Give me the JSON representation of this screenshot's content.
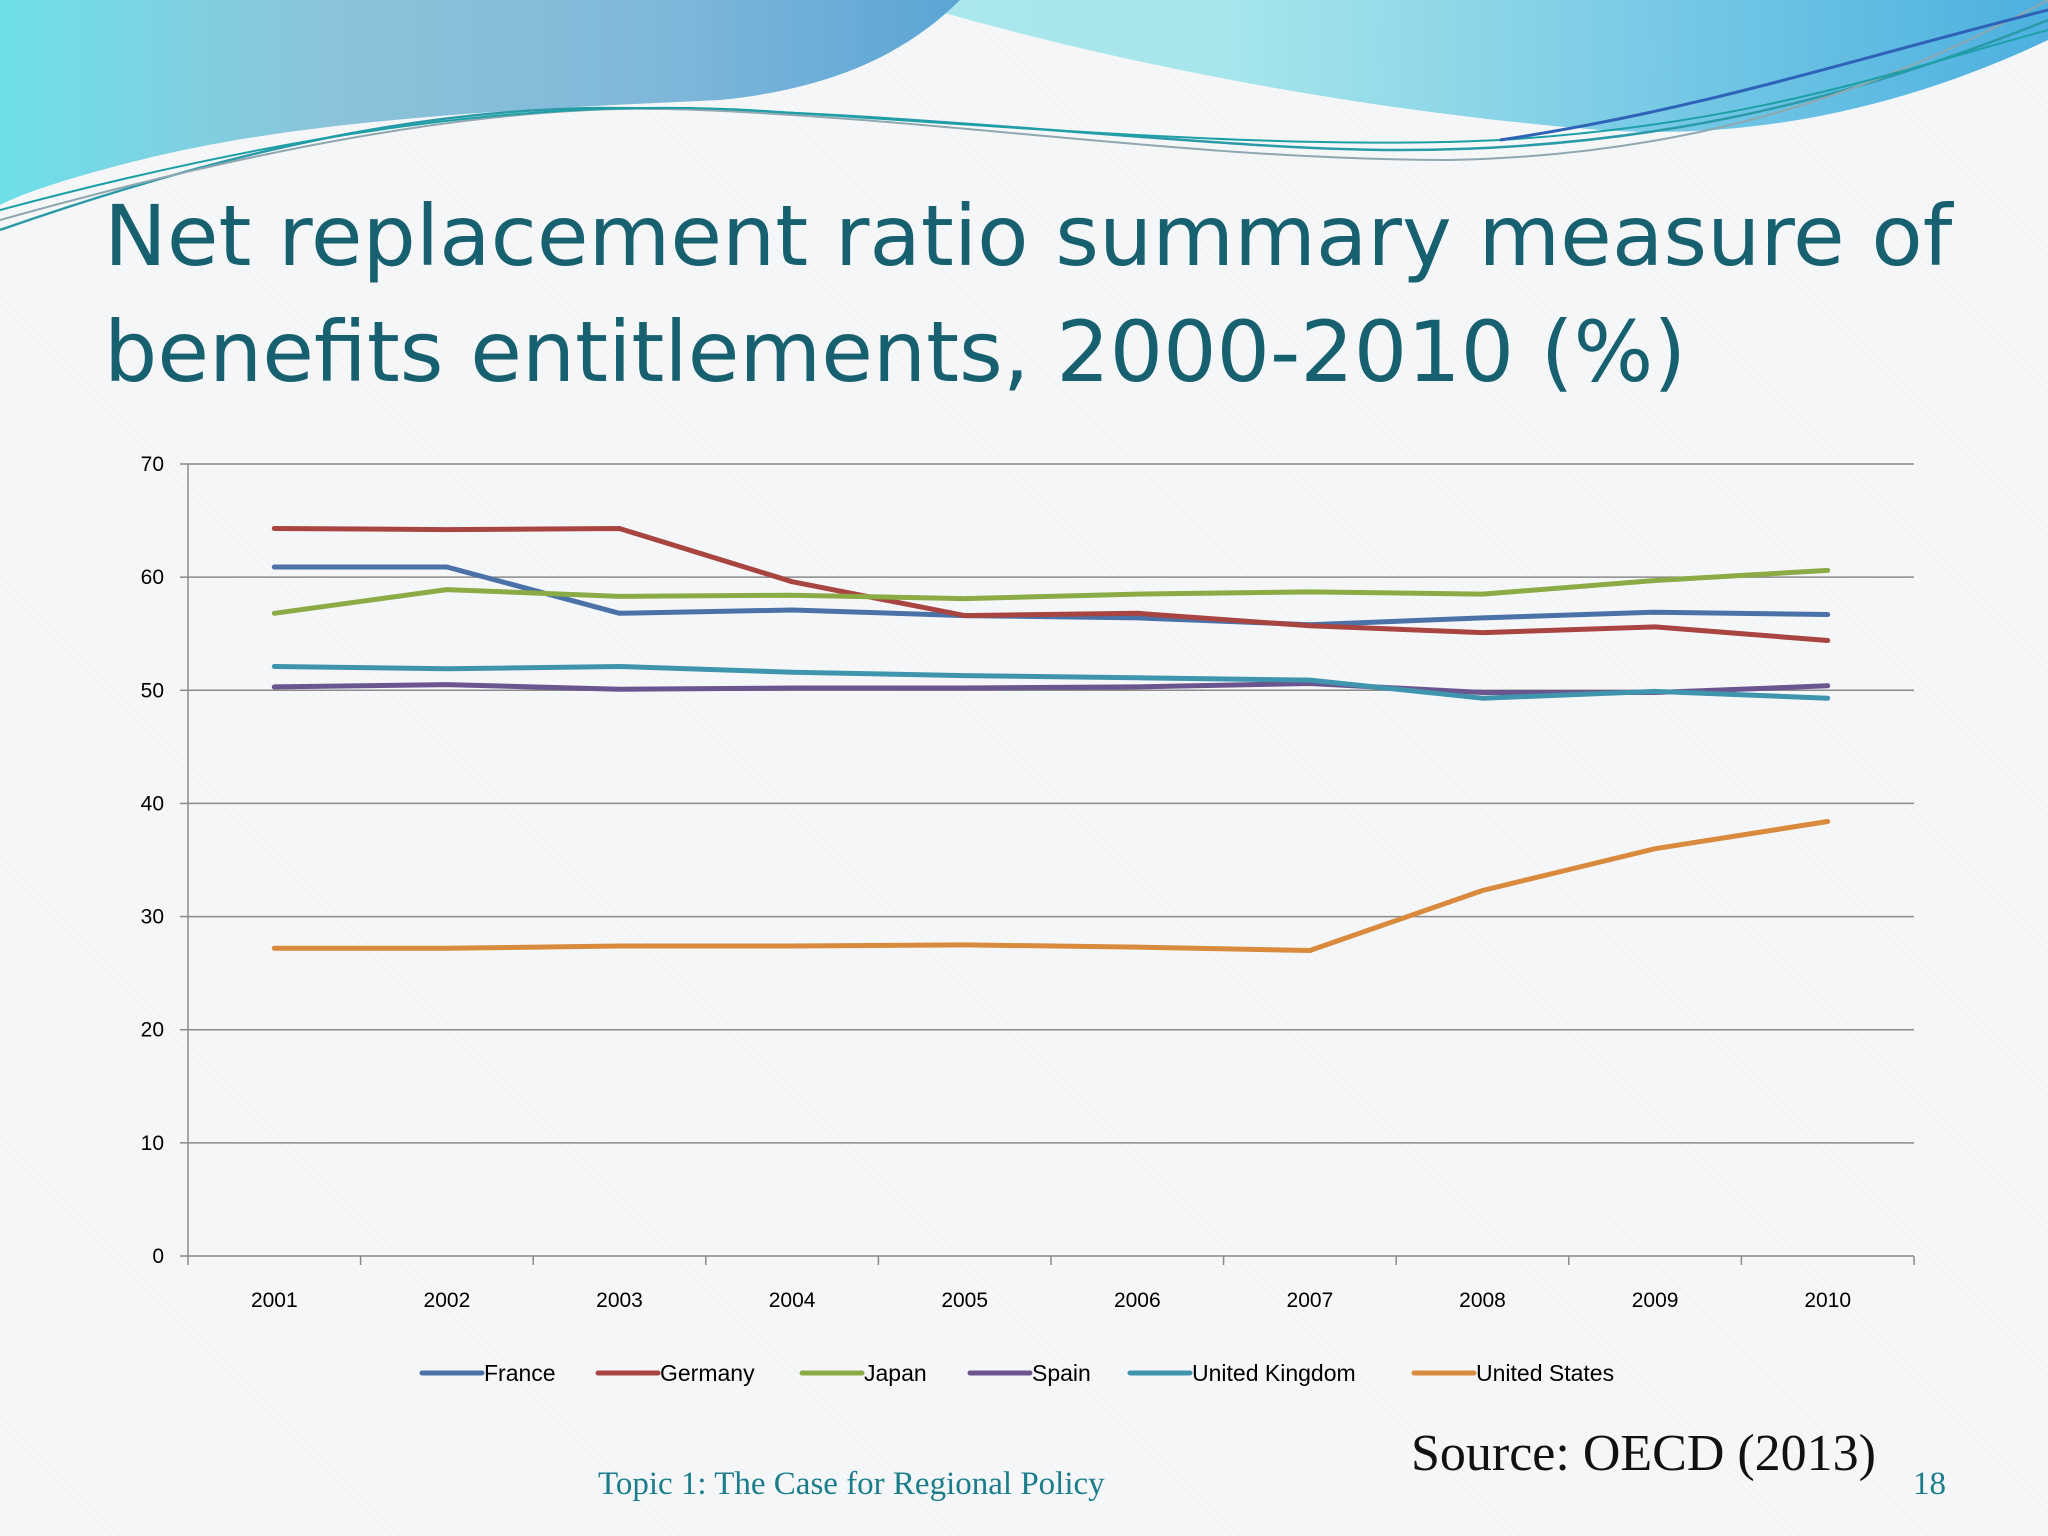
{
  "slide": {
    "title": "Net replacement ratio summary measure of benefits entitlements, 2000-2010 (%)",
    "source": "Source: OECD (2013)",
    "footer_topic": "Topic 1: The Case for Regional Policy",
    "page_number": "18"
  },
  "chart_data": {
    "type": "line",
    "title": "",
    "xlabel": "",
    "ylabel": "",
    "categories": [
      "2001",
      "2002",
      "2003",
      "2004",
      "2005",
      "2006",
      "2007",
      "2008",
      "2009",
      "2010"
    ],
    "ylim": [
      0,
      70
    ],
    "yticks": [
      0,
      10,
      20,
      30,
      40,
      50,
      60,
      70
    ],
    "grid": true,
    "legend_position": "bottom",
    "series": [
      {
        "name": "France",
        "color": "#4a72a8",
        "values": [
          60.9,
          60.9,
          56.8,
          57.1,
          56.6,
          56.4,
          55.8,
          56.4,
          56.9,
          56.7
        ]
      },
      {
        "name": "Germany",
        "color": "#a84541",
        "values": [
          64.3,
          64.2,
          64.3,
          59.6,
          56.6,
          56.8,
          55.7,
          55.1,
          55.6,
          54.4
        ]
      },
      {
        "name": "Japan",
        "color": "#8bab45",
        "values": [
          56.8,
          58.9,
          58.3,
          58.4,
          58.1,
          58.5,
          58.7,
          58.5,
          59.7,
          60.6
        ]
      },
      {
        "name": "Spain",
        "color": "#6a558f",
        "values": [
          50.3,
          50.5,
          50.1,
          50.2,
          50.2,
          50.3,
          50.6,
          49.8,
          49.8,
          50.4
        ]
      },
      {
        "name": "United Kingdom",
        "color": "#3e95ad",
        "values": [
          52.1,
          51.9,
          52.1,
          51.6,
          51.3,
          51.1,
          50.9,
          49.3,
          49.9,
          49.3
        ]
      },
      {
        "name": "United States",
        "color": "#d98a3c",
        "values": [
          27.2,
          27.2,
          27.4,
          27.4,
          27.5,
          27.3,
          27.0,
          32.3,
          36.0,
          38.4
        ]
      }
    ]
  }
}
